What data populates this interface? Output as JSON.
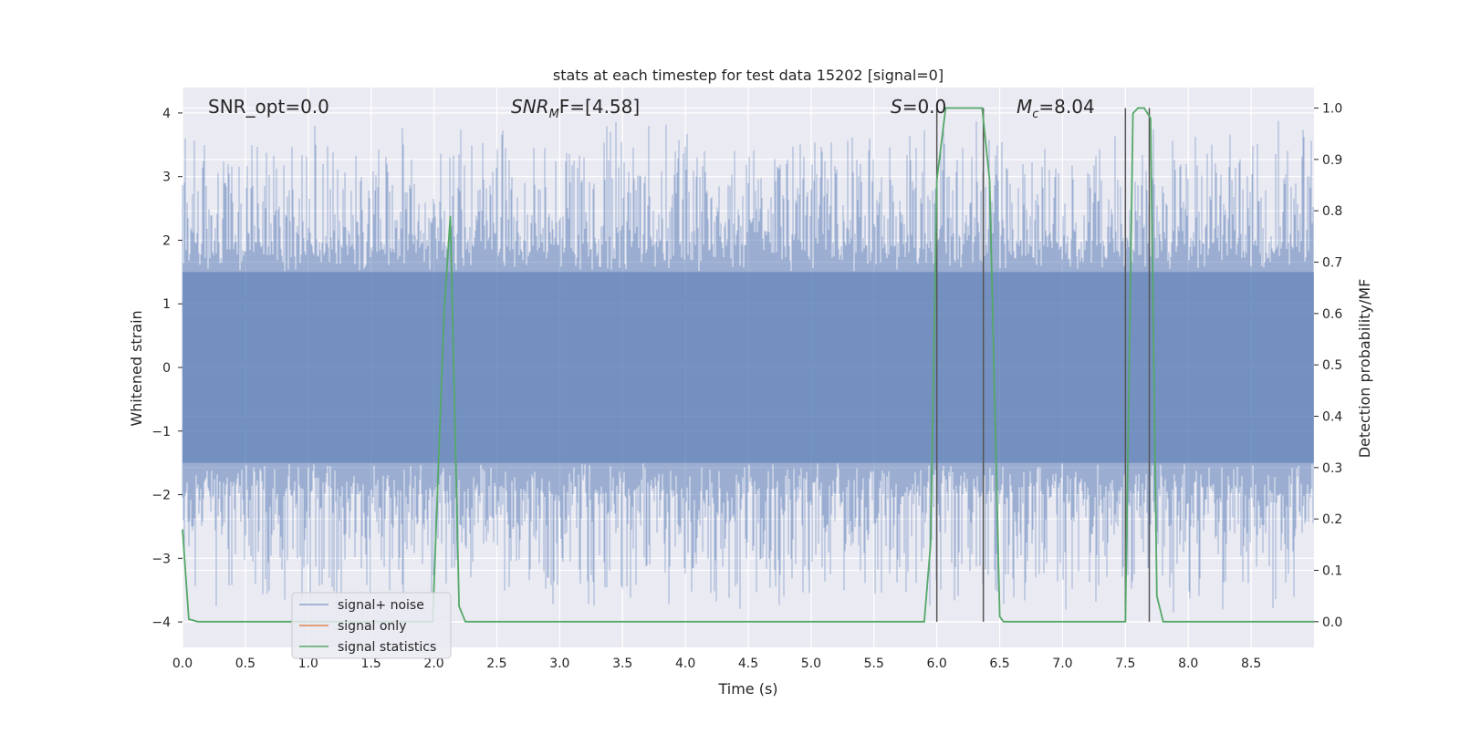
{
  "colors": {
    "background": "#ffffff",
    "plot_background": "#eaeaf2",
    "grid": "#ffffff",
    "noise": "#4c72b0",
    "signal_only": "#dd8452",
    "statistics": "#55a868",
    "marker_lines": "#555555"
  },
  "chart_data": {
    "type": "line",
    "title": "stats at each timestep for test data 15202 [signal=0]",
    "xlabel": "Time (s)",
    "ylabel": "Whitened strain",
    "y2label": "Detection probability/MF",
    "xlim": [
      0.0,
      9.0
    ],
    "ylim": [
      -4.4,
      4.4
    ],
    "y2lim": [
      -0.05,
      1.04
    ],
    "xticks": [
      "0.0",
      "0.5",
      "1.0",
      "1.5",
      "2.0",
      "2.5",
      "3.0",
      "3.5",
      "4.0",
      "4.5",
      "5.0",
      "5.5",
      "6.0",
      "6.5",
      "7.0",
      "7.5",
      "8.0",
      "8.5"
    ],
    "yticks": [
      "4",
      "3",
      "2",
      "1",
      "0",
      "−1",
      "−2",
      "−3",
      "−4"
    ],
    "y2ticks": [
      "1.0",
      "0.9",
      "0.8",
      "0.7",
      "0.6",
      "0.5",
      "0.4",
      "0.3",
      "0.2",
      "0.1",
      "0.0"
    ],
    "grid": true,
    "annotations": {
      "snr_opt": "SNR_opt=0.0",
      "snr_mf_base": "SNR",
      "snr_mf_sub": "M",
      "snr_mf_rest": "F=[4.58]",
      "s_italic": "S",
      "s_rest": "=0.0",
      "mc_base": "M",
      "mc_sub": "c",
      "mc_rest": "=8.04"
    },
    "legend": {
      "placement": "lower-left",
      "entries": [
        "signal+ noise",
        "signal only",
        "signal statistics"
      ]
    },
    "series": [
      {
        "name": "signal+ noise",
        "description_kind": "whitened strain noise band",
        "amplitude_core": 1.5,
        "amplitude_peak_max": 4.0
      },
      {
        "name": "signal only",
        "values": []
      },
      {
        "name": "signal statistics",
        "x": [
          0.0,
          0.05,
          0.12,
          1.5,
          1.99,
          2.08,
          2.13,
          2.2,
          2.25,
          5.9,
          5.95,
          6.0,
          6.07,
          6.36,
          6.42,
          6.5,
          6.53,
          7.45,
          7.5,
          7.56,
          7.6,
          7.65,
          7.7,
          7.75,
          7.8,
          9.0
        ],
        "values": [
          0.18,
          0.005,
          0.0,
          0.0,
          0.0,
          0.6,
          0.79,
          0.03,
          0.0,
          0.0,
          0.15,
          0.86,
          1.0,
          1.0,
          0.86,
          0.01,
          0.0,
          0.0,
          0.0,
          0.99,
          1.0,
          1.0,
          0.98,
          0.05,
          0.0,
          0.0
        ]
      }
    ],
    "vertical_markers": [
      6.0,
      6.37,
      7.5,
      7.69
    ]
  }
}
